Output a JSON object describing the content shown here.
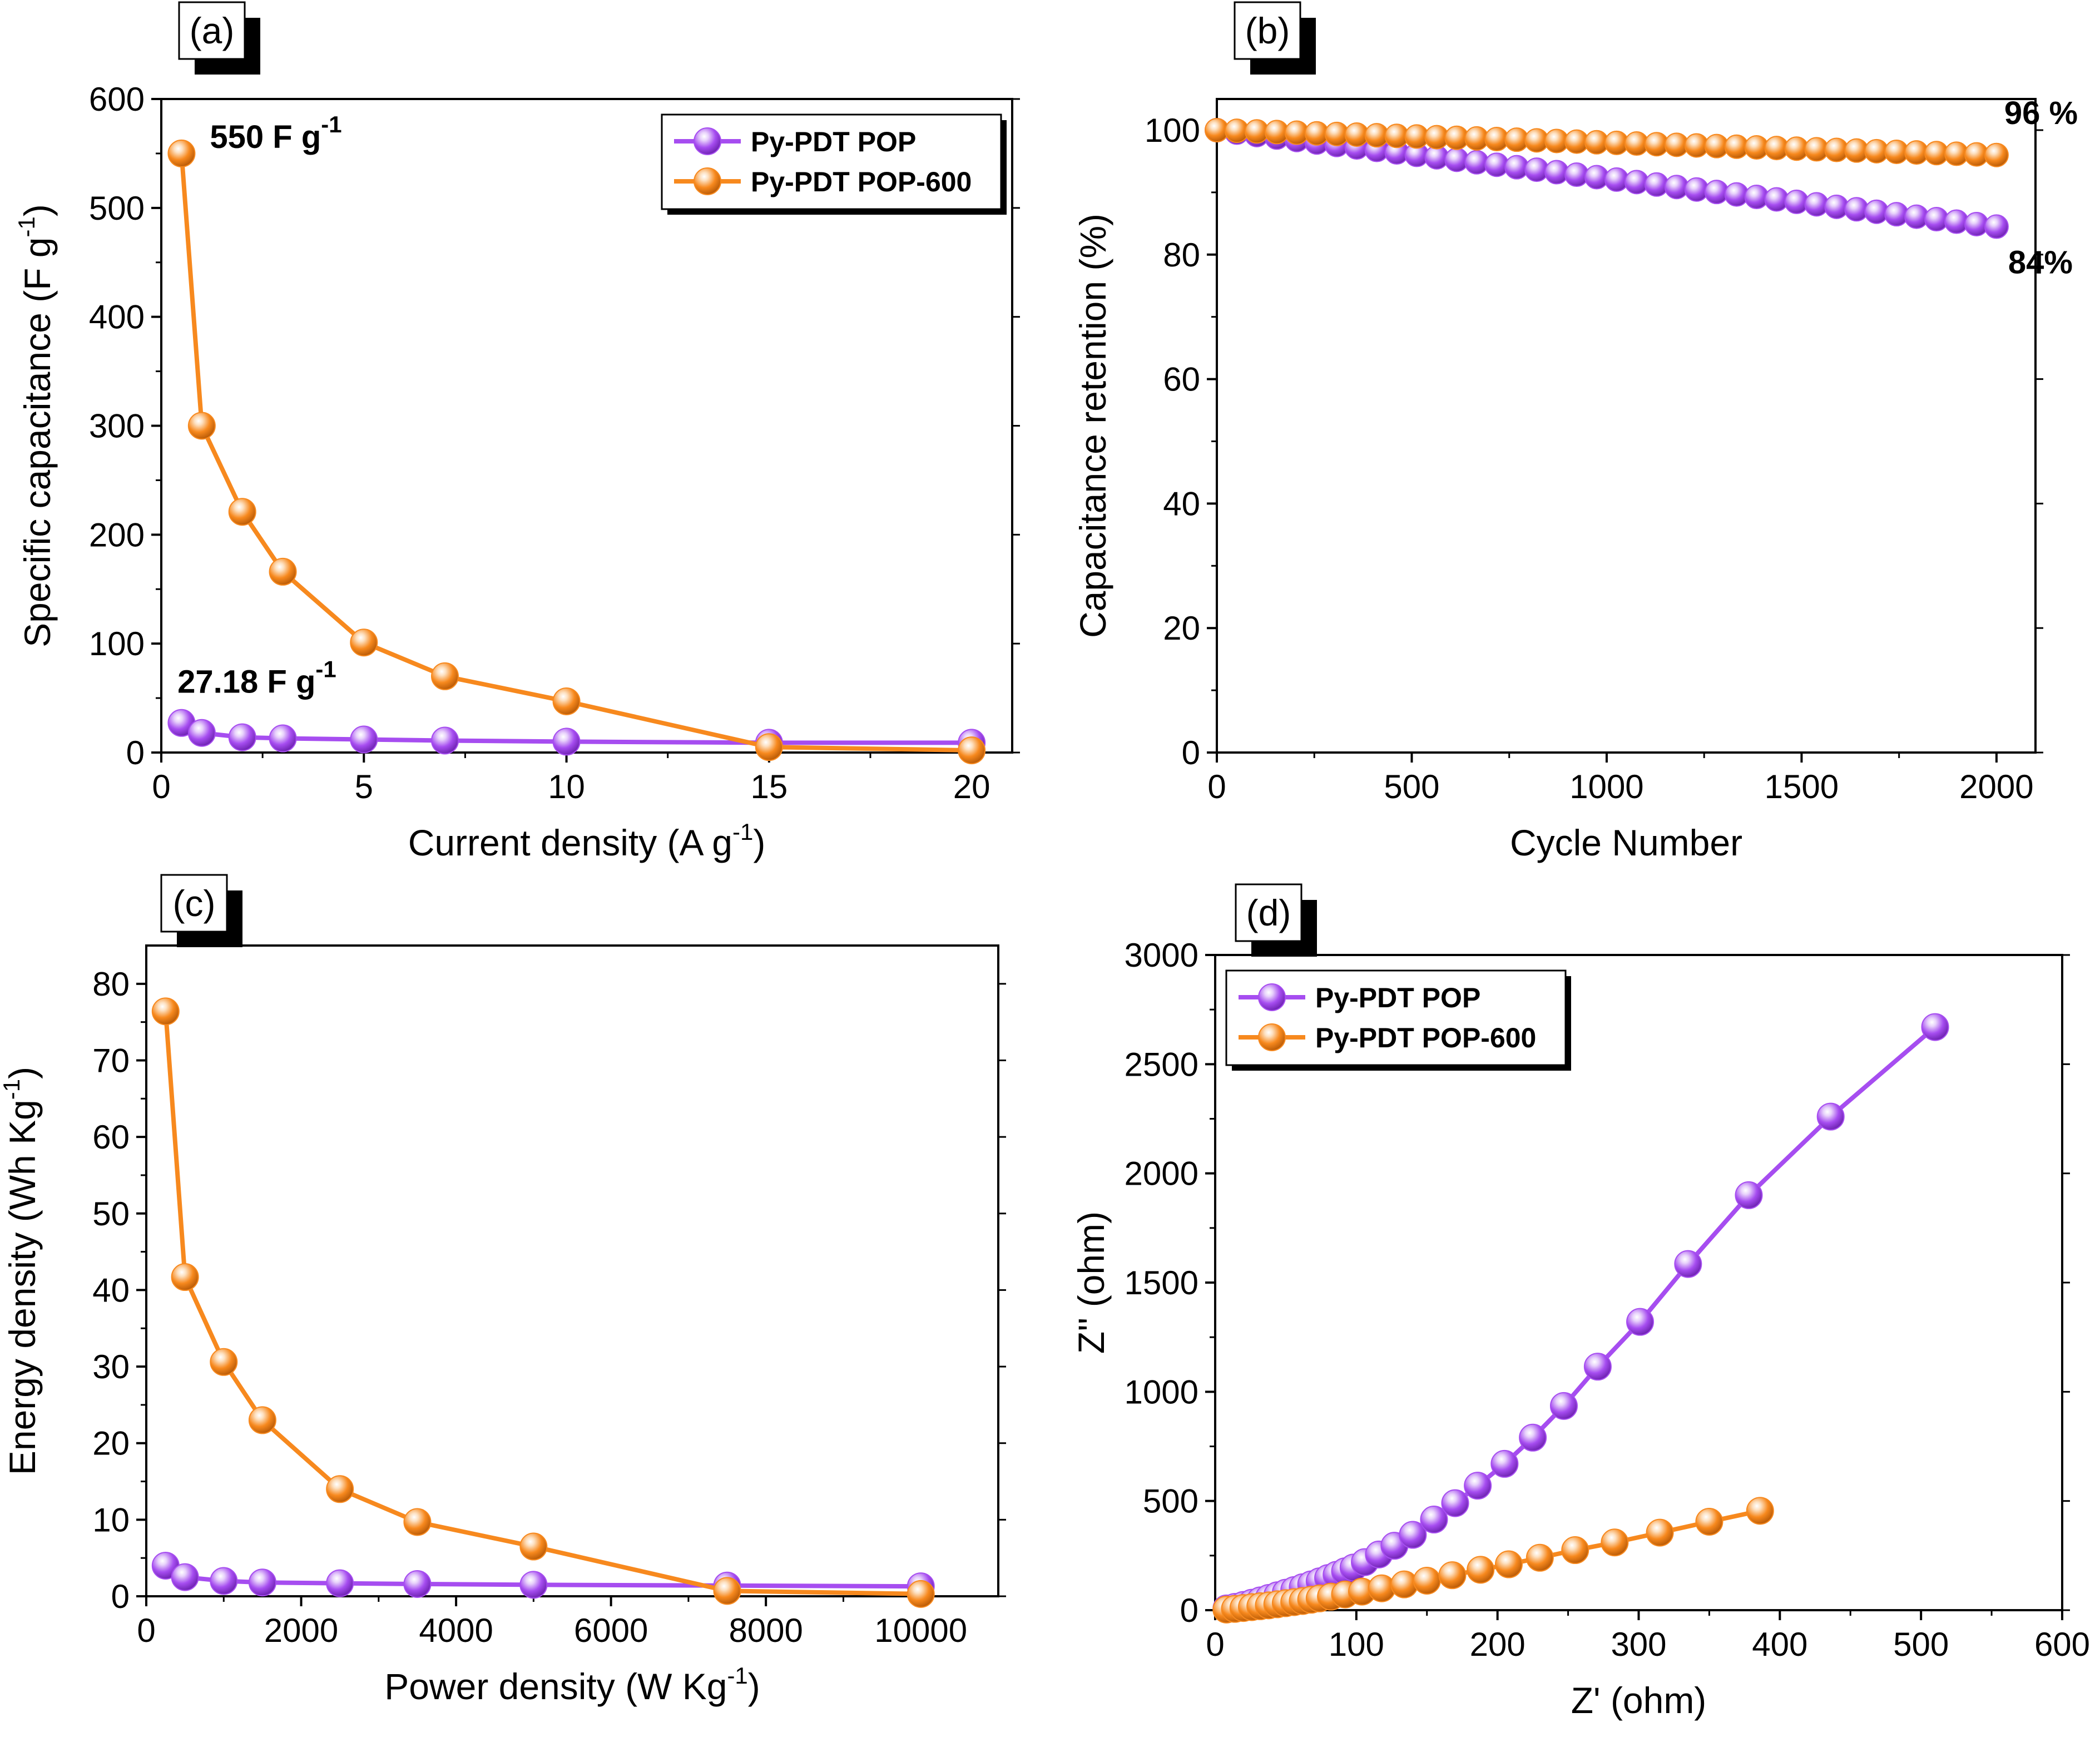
{
  "colors": {
    "series_purple": "#A64DF0",
    "series_orange": "#F7891E",
    "axis": "#000000",
    "background": "#ffffff"
  },
  "chart_data": [
    {
      "panel": "(a)",
      "type": "line",
      "xlabel": "Current density (A g",
      "xlabel_sup": "-1",
      "xlabel_end": ")",
      "ylabel": "Specific capacitance (F g",
      "ylabel_sup": "-1",
      "ylabel_end": ")",
      "xlim": [
        0,
        21
      ],
      "ylim": [
        0,
        600
      ],
      "xticks": [
        0,
        5,
        10,
        15,
        20
      ],
      "yticks": [
        0,
        100,
        200,
        300,
        400,
        500,
        600
      ],
      "legend": [
        "Py-PDT POP",
        "Py-PDT POP-600"
      ],
      "legend_position": "top-right",
      "series": [
        {
          "name": "Py-PDT POP",
          "color": "purple",
          "x": [
            0.5,
            1,
            2,
            3,
            5,
            7,
            10,
            15,
            20
          ],
          "values": [
            27.18,
            18,
            14,
            13,
            12,
            11,
            10,
            9,
            9
          ]
        },
        {
          "name": "Py-PDT POP-600",
          "color": "orange",
          "x": [
            0.5,
            1,
            2,
            3,
            5,
            7,
            10,
            15,
            20
          ],
          "values": [
            550,
            300,
            221,
            166,
            101,
            70,
            47,
            5,
            2
          ]
        }
      ],
      "annotations": [
        {
          "text": "550 F g",
          "sup": "-1",
          "at": [
            1.2,
            555
          ]
        },
        {
          "text": "27.18 F g",
          "sup": "-1",
          "at": [
            0.4,
            55
          ]
        }
      ]
    },
    {
      "panel": "(b)",
      "type": "line",
      "xlabel": "Cycle Number",
      "ylabel": "Capacitance retention (%)",
      "xlim": [
        0,
        2100
      ],
      "ylim": [
        0,
        105
      ],
      "xticks": [
        0,
        500,
        1000,
        1500,
        2000
      ],
      "yticks": [
        0,
        20,
        40,
        60,
        80,
        100
      ],
      "series": [
        {
          "name": "Py-PDT POP",
          "color": "purple",
          "x_start": 0,
          "x_end": 2000,
          "y_start": 100,
          "y_end": 84.5,
          "points": 40
        },
        {
          "name": "Py-PDT POP-600",
          "color": "orange",
          "x_start": 0,
          "x_end": 2000,
          "y_start": 100,
          "y_end": 96,
          "points": 40
        }
      ],
      "annotations": [
        {
          "text": "96 %",
          "at": [
            2020,
            101
          ]
        },
        {
          "text": "84%",
          "at": [
            2030,
            77
          ]
        }
      ]
    },
    {
      "panel": "(c)",
      "type": "line",
      "xlabel": "Power density (W Kg",
      "xlabel_sup": "-1",
      "xlabel_end": ")",
      "ylabel": "Energy density (Wh Kg",
      "ylabel_sup": "-1",
      "ylabel_end": ")",
      "xlim": [
        0,
        11000
      ],
      "ylim": [
        0,
        85
      ],
      "xticks": [
        0,
        2000,
        4000,
        6000,
        8000,
        10000
      ],
      "yticks": [
        0,
        10,
        20,
        30,
        40,
        50,
        60,
        70,
        80
      ],
      "series": [
        {
          "name": "Py-PDT POP",
          "color": "purple",
          "x": [
            250,
            500,
            1000,
            1500,
            2500,
            3500,
            5000,
            7500,
            10000
          ],
          "values": [
            4,
            2.5,
            2,
            1.8,
            1.7,
            1.6,
            1.5,
            1.4,
            1.3
          ]
        },
        {
          "name": "Py-PDT POP-600",
          "color": "orange",
          "x": [
            250,
            500,
            1000,
            1500,
            2500,
            3500,
            5000,
            7500,
            10000
          ],
          "values": [
            76.4,
            41.7,
            30.6,
            23,
            14,
            9.7,
            6.5,
            0.7,
            0.3
          ]
        }
      ]
    },
    {
      "panel": "(d)",
      "type": "scatter",
      "xlabel": "Z' (ohm)",
      "ylabel": "Z'' (ohm)",
      "xlim": [
        0,
        600
      ],
      "ylim": [
        0,
        3000
      ],
      "xticks": [
        0,
        100,
        200,
        300,
        400,
        500,
        600
      ],
      "yticks": [
        0,
        500,
        1000,
        1500,
        2000,
        2500,
        3000
      ],
      "legend": [
        "Py-PDT POP",
        "Py-PDT POP-600"
      ],
      "legend_position": "top-left",
      "series": [
        {
          "name": "Py-PDT POP",
          "color": "purple",
          "x": [
            8,
            14,
            20,
            26,
            32,
            38,
            44,
            50,
            56,
            62,
            68,
            74,
            80,
            86,
            92,
            98,
            106,
            116,
            127,
            140,
            155,
            170,
            186,
            205,
            225,
            247,
            271,
            301,
            335,
            378,
            436,
            510
          ],
          "values": [
            8,
            15,
            24,
            34,
            45,
            56,
            68,
            80,
            92,
            105,
            118,
            132,
            147,
            162,
            178,
            195,
            220,
            255,
            295,
            345,
            415,
            490,
            570,
            670,
            790,
            935,
            1115,
            1320,
            1585,
            1900,
            2260,
            2670
          ]
        },
        {
          "name": "Py-PDT POP-600",
          "color": "orange",
          "x": [
            8,
            14,
            20,
            26,
            32,
            38,
            44,
            50,
            56,
            62,
            68,
            74,
            82,
            92,
            104,
            118,
            134,
            150,
            168,
            188,
            208,
            230,
            255,
            283,
            315,
            350,
            386
          ],
          "values": [
            3,
            6,
            10,
            14,
            18,
            22,
            27,
            32,
            37,
            42,
            48,
            54,
            62,
            72,
            85,
            100,
            118,
            135,
            160,
            185,
            210,
            240,
            275,
            310,
            355,
            405,
            455
          ]
        }
      ]
    }
  ]
}
